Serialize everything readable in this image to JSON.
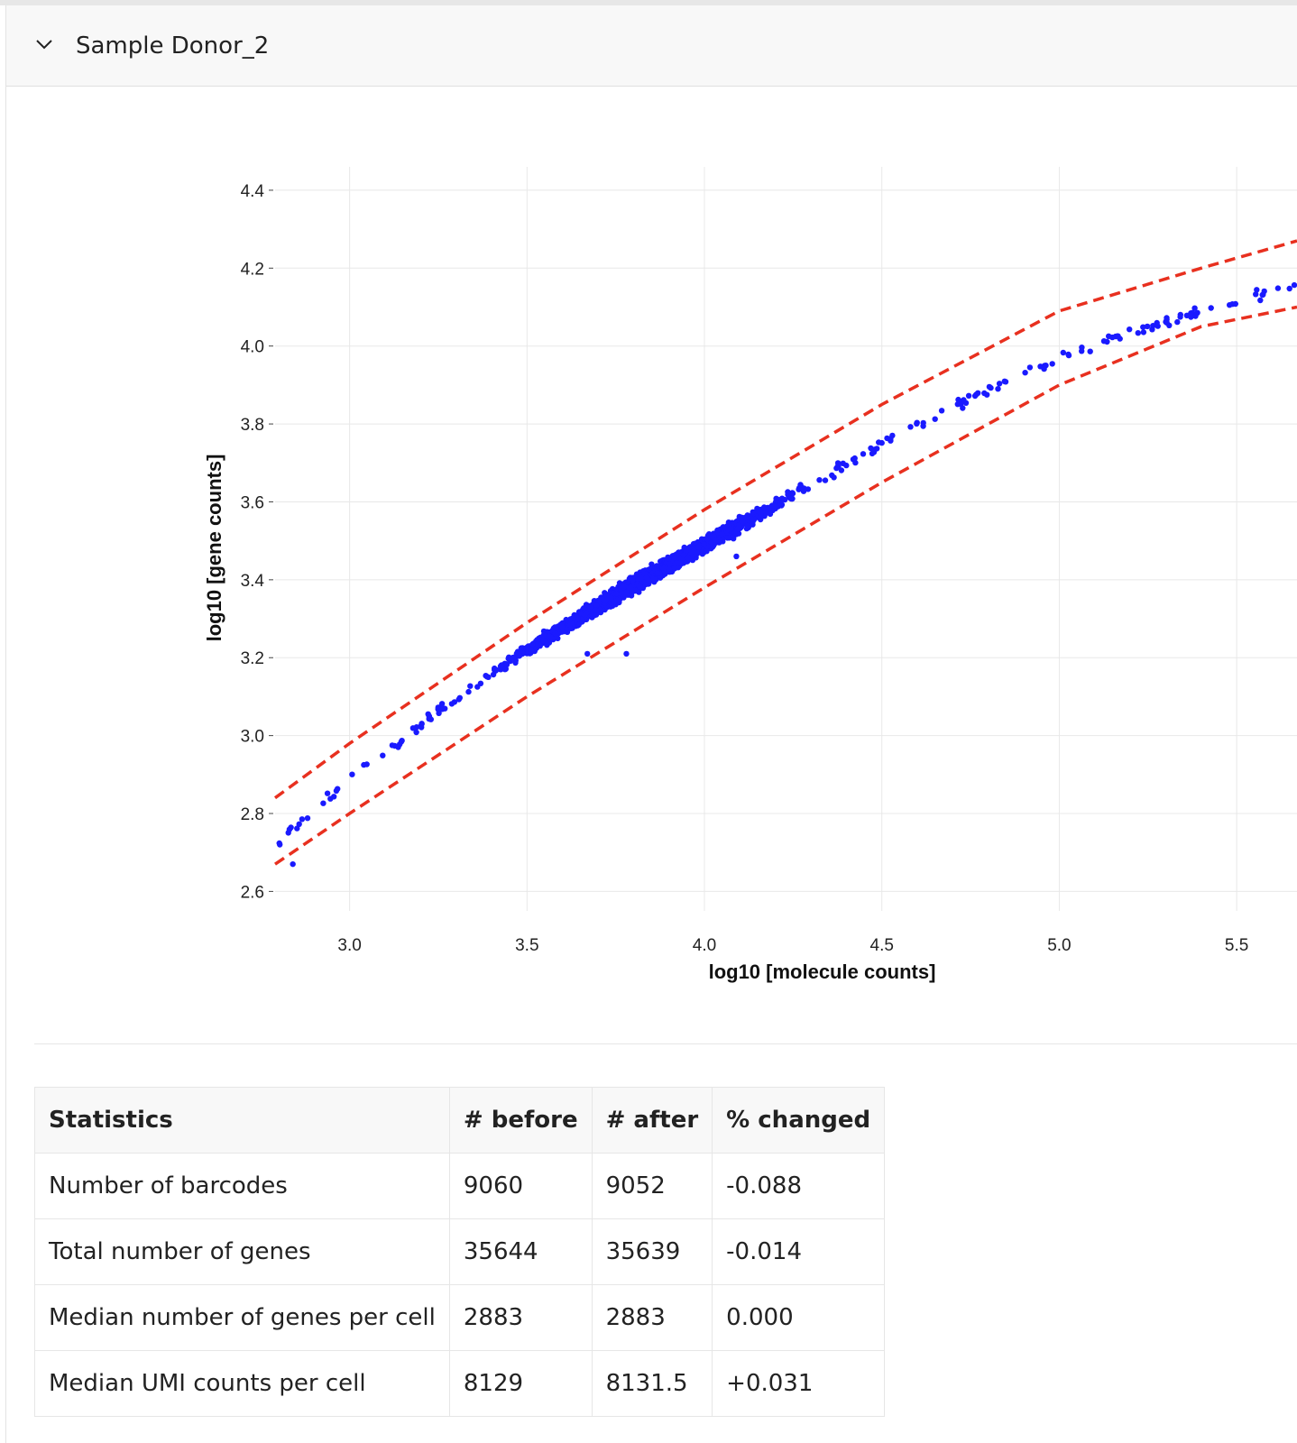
{
  "panel": {
    "title": "Sample Donor_2",
    "toggle_icon": "chevron-down-icon"
  },
  "colors": {
    "points": "#1a1aff",
    "bounds": "#e8301f",
    "grid": "#e8e8e8",
    "header_bg": "#f8f8f8"
  },
  "chart_data": {
    "type": "scatter",
    "xlabel": "log10 [molecule counts]",
    "ylabel": "log10 [gene counts]",
    "xlim": [
      2.79,
      5.67
    ],
    "ylim": [
      2.55,
      4.46
    ],
    "xticks": [
      3.0,
      3.5,
      4.0,
      4.5,
      5.0,
      5.5
    ],
    "xtick_labels": [
      "3.0",
      "3.5",
      "4.0",
      "4.5",
      "5.0",
      "5.5"
    ],
    "yticks": [
      2.6,
      2.8,
      3.0,
      3.2,
      3.4,
      3.6,
      3.8,
      4.0,
      4.2,
      4.4
    ],
    "ytick_labels": [
      "2.6",
      "2.8",
      "3.0",
      "3.2",
      "3.4",
      "3.6",
      "3.8",
      "4.0",
      "4.2",
      "4.4"
    ],
    "grid": true,
    "trend_points": [
      {
        "x": 2.8,
        "y": 2.73
      },
      {
        "x": 3.0,
        "y": 2.89
      },
      {
        "x": 3.25,
        "y": 3.06
      },
      {
        "x": 3.5,
        "y": 3.22
      },
      {
        "x": 3.75,
        "y": 3.36
      },
      {
        "x": 4.0,
        "y": 3.49
      },
      {
        "x": 4.25,
        "y": 3.62
      },
      {
        "x": 4.5,
        "y": 3.75
      },
      {
        "x": 4.75,
        "y": 3.87
      },
      {
        "x": 5.0,
        "y": 3.97
      },
      {
        "x": 5.25,
        "y": 4.05
      },
      {
        "x": 5.5,
        "y": 4.11
      },
      {
        "x": 5.67,
        "y": 4.16
      }
    ],
    "upper_bound": [
      {
        "x": 2.79,
        "y": 2.84
      },
      {
        "x": 3.0,
        "y": 2.98
      },
      {
        "x": 3.5,
        "y": 3.29
      },
      {
        "x": 4.0,
        "y": 3.58
      },
      {
        "x": 4.5,
        "y": 3.85
      },
      {
        "x": 5.0,
        "y": 4.09
      },
      {
        "x": 5.4,
        "y": 4.2
      },
      {
        "x": 5.67,
        "y": 4.27
      }
    ],
    "lower_bound": [
      {
        "x": 2.79,
        "y": 2.67
      },
      {
        "x": 3.0,
        "y": 2.8
      },
      {
        "x": 3.5,
        "y": 3.1
      },
      {
        "x": 4.0,
        "y": 3.38
      },
      {
        "x": 4.5,
        "y": 3.65
      },
      {
        "x": 5.0,
        "y": 3.9
      },
      {
        "x": 5.4,
        "y": 4.05
      },
      {
        "x": 5.67,
        "y": 4.1
      }
    ],
    "outliers": [
      {
        "x": 2.84,
        "y": 2.67
      },
      {
        "x": 3.67,
        "y": 3.21
      },
      {
        "x": 3.78,
        "y": 3.21
      },
      {
        "x": 4.09,
        "y": 3.46
      }
    ]
  },
  "stats": {
    "headers": [
      "Statistics",
      "# before",
      "# after",
      "% changed"
    ],
    "rows": [
      [
        "Number of barcodes",
        "9060",
        "9052",
        "-0.088"
      ],
      [
        "Total number of genes",
        "35644",
        "35639",
        "-0.014"
      ],
      [
        "Median number of genes per cell",
        "2883",
        "2883",
        "0.000"
      ],
      [
        "Median UMI counts per cell",
        "8129",
        "8131.5",
        "+0.031"
      ]
    ]
  }
}
